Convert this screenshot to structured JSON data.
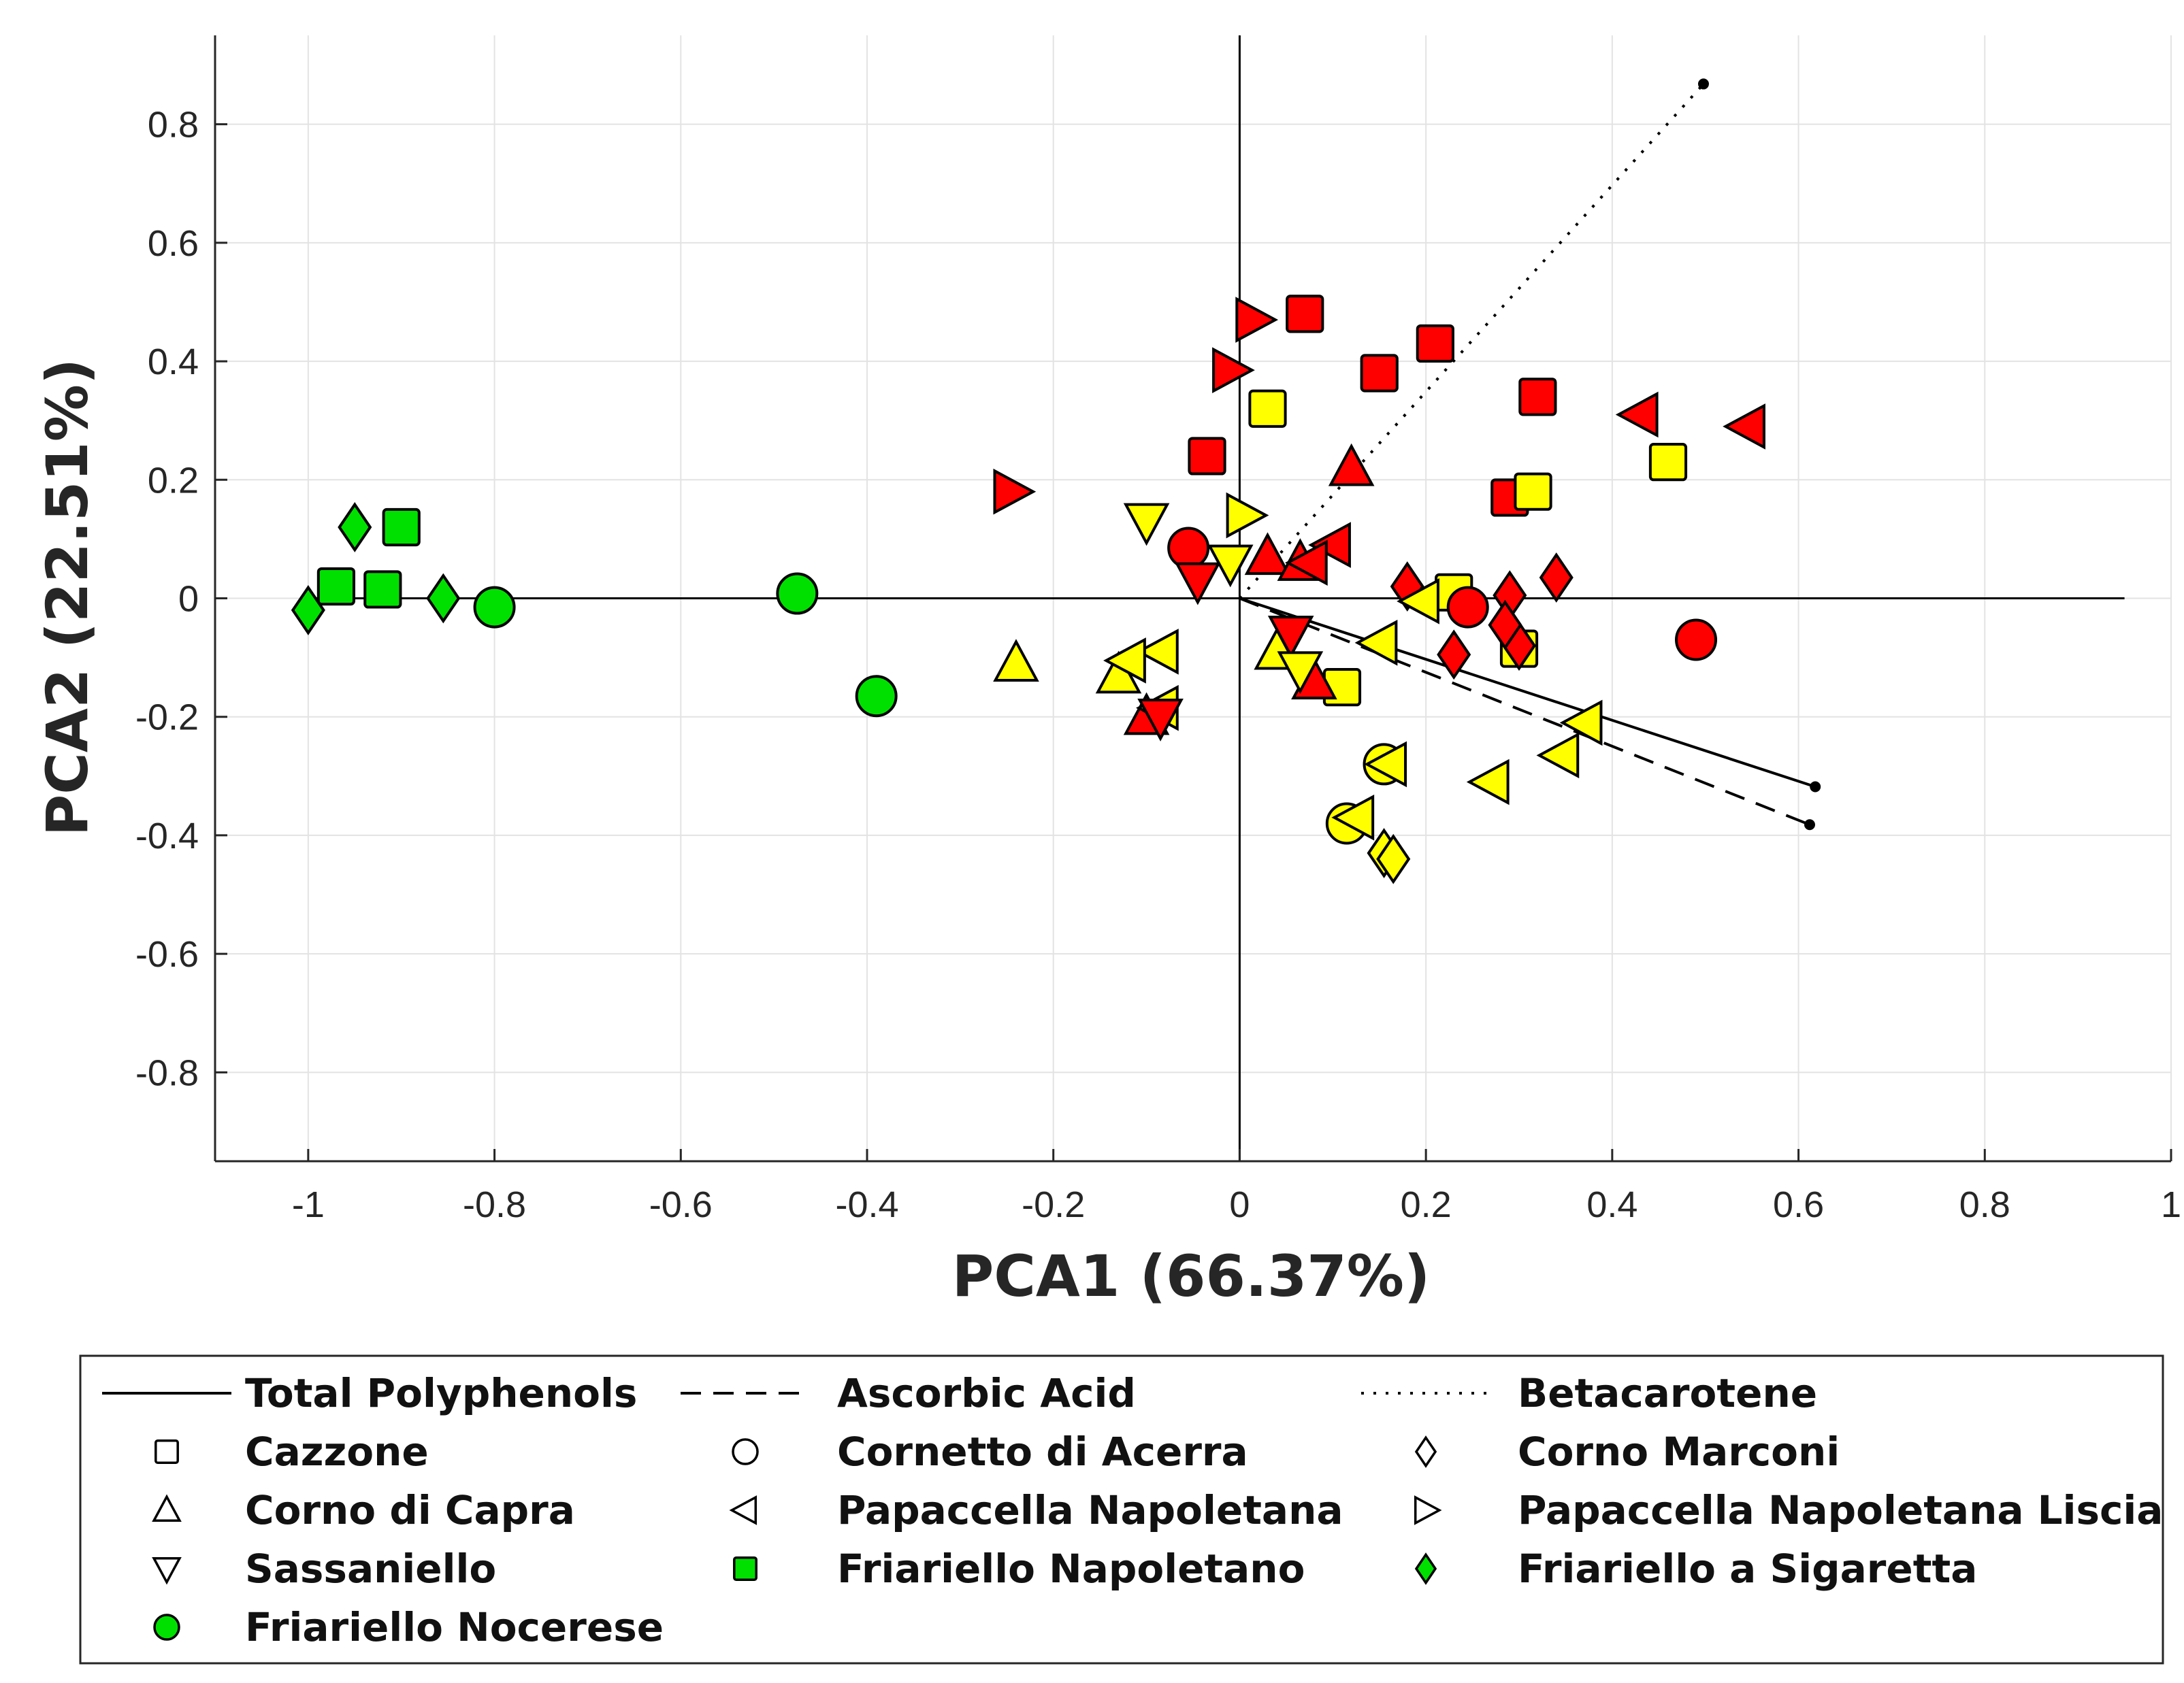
{
  "chart_data": {
    "type": "scatter",
    "title": "",
    "xlabel": "PCA1 (66.37%)",
    "ylabel": "PCA2 (22.51%)",
    "xlim": [
      -1.1,
      1.0
    ],
    "ylim": [
      -0.95,
      0.95
    ],
    "grid": true,
    "x_ticks": [
      -1,
      -0.8,
      -0.6,
      -0.4,
      -0.2,
      0,
      0.2,
      0.4,
      0.6,
      0.8,
      1
    ],
    "x_tick_labels": [
      "-1",
      "-0.8",
      "-0.6",
      "-0.4",
      "-0.2",
      "0",
      "0.2",
      "0.4",
      "0.6",
      "0.8",
      "1"
    ],
    "y_ticks": [
      -0.8,
      -0.6,
      -0.4,
      -0.2,
      0,
      0.2,
      0.4,
      0.6,
      0.8
    ],
    "y_tick_labels": [
      "-0.8",
      "-0.6",
      "-0.4",
      "-0.2",
      "0",
      "0.2",
      "0.4",
      "0.6",
      "0.8"
    ],
    "colors": {
      "red": "#ff0000",
      "yellow": "#ffff00",
      "green": "#00e000",
      "line": "#000000",
      "grid": "#e3e3e3"
    },
    "vectors": [
      {
        "name": "Total Polyphenols",
        "style": "solid",
        "end": [
          0.618,
          -0.318
        ]
      },
      {
        "name": "Ascorbic Acid",
        "style": "dashed",
        "end": [
          0.612,
          -0.382
        ]
      },
      {
        "name": "Betacarotene",
        "style": "dotted",
        "end": [
          0.498,
          0.868
        ]
      }
    ],
    "legend": [
      {
        "kind": "line",
        "style": "solid",
        "label": "Total Polyphenols"
      },
      {
        "kind": "line",
        "style": "dashed",
        "label": "Ascorbic Acid"
      },
      {
        "kind": "line",
        "style": "dotted",
        "label": "Betacarotene"
      },
      {
        "kind": "marker",
        "marker": "square",
        "fill": "none",
        "label": "Cazzone"
      },
      {
        "kind": "marker",
        "marker": "circle",
        "fill": "none",
        "label": "Cornetto di Acerra"
      },
      {
        "kind": "marker",
        "marker": "diamond",
        "fill": "none",
        "label": "Corno Marconi"
      },
      {
        "kind": "marker",
        "marker": "triangle-up",
        "fill": "none",
        "label": "Corno di Capra"
      },
      {
        "kind": "marker",
        "marker": "triangle-left",
        "fill": "none",
        "label": "Papaccella Napoletana"
      },
      {
        "kind": "marker",
        "marker": "triangle-right",
        "fill": "none",
        "label": "Papaccella Napoletana Liscia"
      },
      {
        "kind": "marker",
        "marker": "triangle-down",
        "fill": "none",
        "label": "Sassaniello"
      },
      {
        "kind": "marker",
        "marker": "square",
        "fill": "green",
        "label": "Friariello Napoletano"
      },
      {
        "kind": "marker",
        "marker": "diamond",
        "fill": "green",
        "label": "Friariello a Sigaretta"
      },
      {
        "kind": "marker",
        "marker": "circle",
        "fill": "green",
        "label": "Friariello Nocerese"
      }
    ],
    "series": [
      {
        "name": "Friariello Napoletano",
        "marker": "square",
        "color": "green",
        "points": [
          [
            -0.97,
            0.02
          ],
          [
            -0.92,
            0.015
          ],
          [
            -0.9,
            0.12
          ]
        ]
      },
      {
        "name": "Friariello a Sigaretta",
        "marker": "diamond",
        "color": "green",
        "points": [
          [
            -1.0,
            -0.02
          ],
          [
            -0.95,
            0.12
          ],
          [
            -0.855,
            0.0
          ]
        ]
      },
      {
        "name": "Friariello Nocerese",
        "marker": "circle",
        "color": "green",
        "points": [
          [
            -0.8,
            -0.015
          ],
          [
            -0.475,
            0.008
          ],
          [
            -0.39,
            -0.165
          ]
        ]
      },
      {
        "name": "Cazzone",
        "marker": "square",
        "color": "red",
        "points": [
          [
            0.07,
            0.48
          ],
          [
            0.21,
            0.43
          ],
          [
            0.15,
            0.38
          ],
          [
            0.32,
            0.34
          ],
          [
            -0.035,
            0.24
          ],
          [
            0.29,
            0.17
          ]
        ]
      },
      {
        "name": "Cazzone",
        "marker": "square",
        "color": "yellow",
        "points": [
          [
            0.03,
            0.32
          ],
          [
            0.46,
            0.23
          ],
          [
            0.315,
            0.18
          ],
          [
            0.23,
            0.01
          ],
          [
            0.3,
            -0.085
          ],
          [
            0.11,
            -0.15
          ]
        ]
      },
      {
        "name": "Cornetto di Acerra",
        "marker": "circle",
        "color": "red",
        "points": [
          [
            -0.055,
            0.085
          ],
          [
            0.245,
            -0.015
          ],
          [
            0.49,
            -0.07
          ]
        ]
      },
      {
        "name": "Cornetto di Acerra",
        "marker": "circle",
        "color": "yellow",
        "points": [
          [
            0.155,
            -0.28
          ],
          [
            0.115,
            -0.38
          ]
        ]
      },
      {
        "name": "Corno Marconi",
        "marker": "diamond",
        "color": "red",
        "points": [
          [
            0.34,
            0.035
          ],
          [
            0.29,
            0.005
          ],
          [
            0.3,
            -0.08
          ],
          [
            0.23,
            -0.095
          ],
          [
            0.285,
            -0.045
          ],
          [
            0.18,
            0.02
          ]
        ]
      },
      {
        "name": "Corno Marconi",
        "marker": "diamond",
        "color": "yellow",
        "points": [
          [
            0.155,
            -0.43
          ],
          [
            0.165,
            -0.44
          ]
        ]
      },
      {
        "name": "Corno di Capra",
        "marker": "triangle-up",
        "color": "red",
        "points": [
          [
            0.12,
            0.22
          ],
          [
            0.03,
            0.07
          ],
          [
            0.065,
            0.06
          ],
          [
            0.08,
            -0.14
          ],
          [
            -0.1,
            -0.2
          ]
        ]
      },
      {
        "name": "Corno di Capra",
        "marker": "triangle-up",
        "color": "yellow",
        "points": [
          [
            -0.24,
            -0.11
          ],
          [
            -0.13,
            -0.13
          ],
          [
            0.04,
            -0.09
          ]
        ]
      },
      {
        "name": "Papaccella Napoletana",
        "marker": "triangle-left",
        "color": "red",
        "points": [
          [
            0.43,
            0.31
          ],
          [
            0.545,
            0.29
          ],
          [
            0.1,
            0.09
          ],
          [
            0.075,
            0.06
          ]
        ]
      },
      {
        "name": "Papaccella Napoletana",
        "marker": "triangle-left",
        "color": "yellow",
        "points": [
          [
            0.195,
            -0.005
          ],
          [
            0.15,
            -0.075
          ],
          [
            0.37,
            -0.21
          ],
          [
            0.345,
            -0.265
          ],
          [
            0.27,
            -0.31
          ],
          [
            0.16,
            -0.28
          ],
          [
            0.125,
            -0.37
          ],
          [
            -0.085,
            -0.09
          ],
          [
            -0.12,
            -0.105
          ],
          [
            -0.085,
            -0.185
          ]
        ]
      },
      {
        "name": "Papaccella Napoletana Liscia",
        "marker": "triangle-right",
        "color": "red",
        "points": [
          [
            0.015,
            0.47
          ],
          [
            -0.01,
            0.385
          ],
          [
            -0.245,
            0.18
          ]
        ]
      },
      {
        "name": "Papaccella Napoletana Liscia",
        "marker": "triangle-right",
        "color": "yellow",
        "points": [
          [
            0.005,
            0.14
          ]
        ]
      },
      {
        "name": "Sassaniello",
        "marker": "triangle-down",
        "color": "red",
        "points": [
          [
            -0.045,
            0.03
          ],
          [
            0.055,
            -0.06
          ],
          [
            -0.085,
            -0.2
          ]
        ]
      },
      {
        "name": "Sassaniello",
        "marker": "triangle-down",
        "color": "yellow",
        "points": [
          [
            -0.1,
            0.13
          ],
          [
            -0.01,
            0.06
          ],
          [
            0.065,
            -0.12
          ]
        ]
      }
    ]
  }
}
